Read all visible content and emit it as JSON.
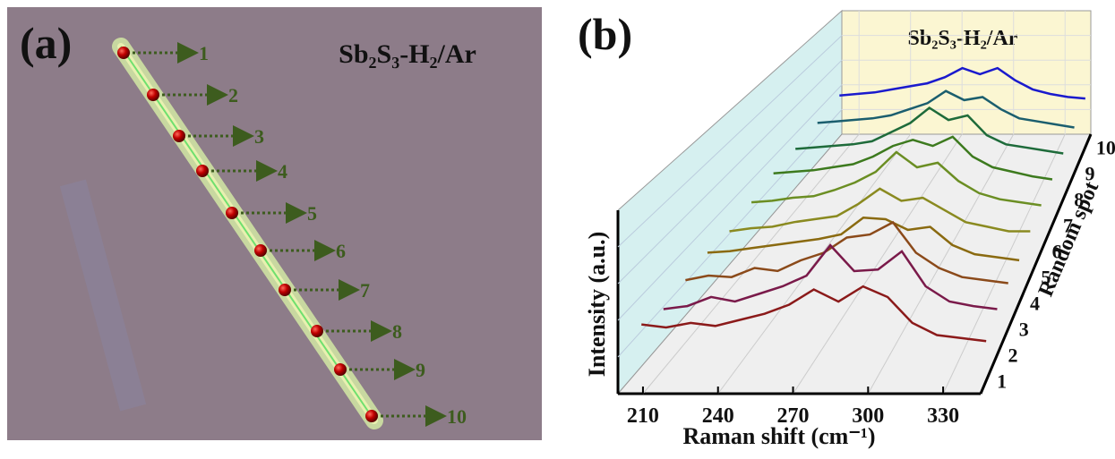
{
  "panel_a": {
    "label": "(a)",
    "title": "Sb₂S₃-H₂/Ar",
    "spots": [
      "1",
      "2",
      "3",
      "4",
      "5",
      "6",
      "7",
      "8",
      "9",
      "10"
    ]
  },
  "chart_data": {
    "type": "waterfall",
    "label": "(b)",
    "title": "Sb₂S₃-H₂/Ar",
    "x_label": "Raman shift (cm⁻¹)",
    "y_label": "Intensity (a.u.)",
    "z_label": "Random spot",
    "x": [
      205,
      215,
      225,
      235,
      245,
      255,
      265,
      275,
      285,
      295,
      305,
      315,
      325,
      335,
      345
    ],
    "xlim": [
      200,
      345
    ],
    "xticks": [
      210,
      240,
      270,
      300,
      330
    ],
    "ylim": [
      0,
      100
    ],
    "grid": true,
    "series": [
      {
        "name": "1",
        "color": "#8b1a1a",
        "values": [
          37,
          35,
          38,
          36,
          40,
          44,
          50,
          60,
          52,
          62,
          55,
          38,
          30,
          28,
          26
        ]
      },
      {
        "name": "2",
        "color": "#7a1a4a",
        "values": [
          30,
          32,
          38,
          35,
          40,
          45,
          52,
          72,
          55,
          56,
          68,
          45,
          35,
          32,
          30
        ]
      },
      {
        "name": "3",
        "color": "#8b4a1a",
        "values": [
          32,
          35,
          34,
          40,
          38,
          45,
          50,
          60,
          62,
          70,
          50,
          40,
          34,
          32,
          30
        ]
      },
      {
        "name": "4",
        "color": "#8a6a10",
        "values": [
          33,
          34,
          36,
          38,
          40,
          42,
          45,
          56,
          55,
          48,
          50,
          38,
          32,
          30,
          28
        ]
      },
      {
        "name": "5",
        "color": "#8a8a20",
        "values": [
          30,
          32,
          33,
          36,
          38,
          40,
          48,
          58,
          50,
          52,
          44,
          36,
          33,
          30,
          30
        ]
      },
      {
        "name": "6",
        "color": "#6b8e23",
        "values": [
          32,
          33,
          35,
          36,
          40,
          45,
          52,
          65,
          55,
          58,
          46,
          38,
          34,
          32,
          30
        ]
      },
      {
        "name": "7",
        "color": "#3d7a1e",
        "values": [
          34,
          35,
          36,
          38,
          40,
          45,
          52,
          56,
          52,
          58,
          45,
          38,
          35,
          32,
          30
        ]
      },
      {
        "name": "8",
        "color": "#1e6b3a",
        "values": [
          33,
          34,
          35,
          36,
          38,
          44,
          50,
          60,
          52,
          55,
          42,
          36,
          34,
          32,
          30
        ]
      },
      {
        "name": "9",
        "color": "#1b5e6e",
        "values": [
          33,
          34,
          35,
          36,
          38,
          42,
          46,
          54,
          48,
          50,
          42,
          36,
          34,
          32,
          30
        ]
      },
      {
        "name": "10",
        "color": "#1a1acd",
        "values": [
          34,
          35,
          36,
          38,
          40,
          42,
          46,
          52,
          48,
          52,
          44,
          38,
          35,
          33,
          32
        ]
      }
    ]
  }
}
